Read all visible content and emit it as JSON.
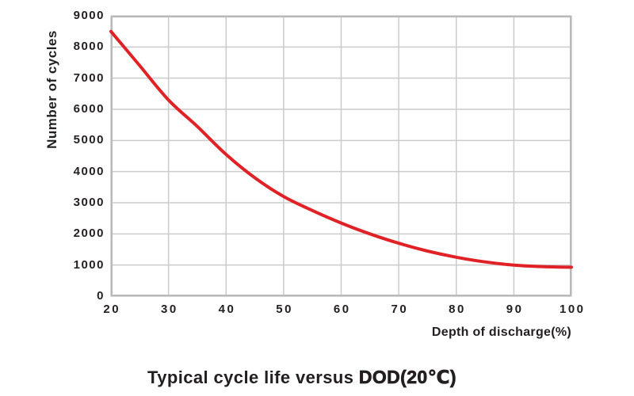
{
  "title": {
    "prefix": "Typical cycle life versus ",
    "bold": "DOD(20℃)"
  },
  "axes": {
    "x": {
      "label": "Depth of discharge(%)",
      "min": 20,
      "max": 100,
      "ticks": [
        "20",
        "30",
        "40",
        "50",
        "60",
        "70",
        "80",
        "90",
        "100"
      ]
    },
    "y": {
      "label": "Number of cycles",
      "min": 0,
      "max": 9000,
      "ticks": [
        "0",
        "1000",
        "2000",
        "3000",
        "4000",
        "5000",
        "6000",
        "7000",
        "8000",
        "9000"
      ]
    }
  },
  "colors": {
    "curve": "#e02125",
    "grid": "#cbcbcb",
    "border": "#b9b9b9",
    "text": "#231f20"
  },
  "chart_data": {
    "type": "line",
    "title": "Typical cycle life versus DOD(20℃)",
    "xlabel": "Depth of discharge(%)",
    "ylabel": "Number of cycles",
    "xlim": [
      20,
      100
    ],
    "ylim": [
      0,
      9000
    ],
    "grid": true,
    "legend": "none",
    "series": [
      {
        "name": "cycle-life-vs-dod",
        "color": "#e02125",
        "x": [
          20,
          25,
          30,
          35,
          40,
          45,
          50,
          55,
          60,
          65,
          70,
          75,
          80,
          85,
          90,
          95,
          100
        ],
        "y": [
          8500,
          7400,
          6300,
          5450,
          4550,
          3800,
          3200,
          2750,
          2350,
          2000,
          1700,
          1450,
          1250,
          1100,
          1000,
          950,
          930
        ]
      }
    ]
  }
}
